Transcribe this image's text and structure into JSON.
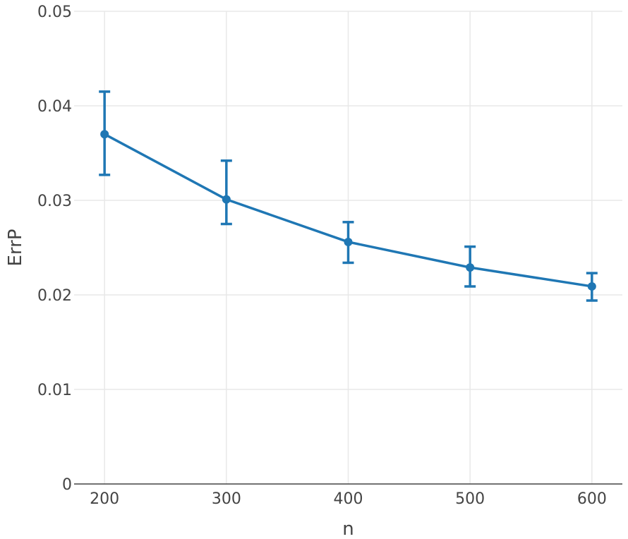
{
  "chart_data": {
    "type": "line",
    "xlabel": "n",
    "ylabel": "ErrP",
    "xlim": [
      175,
      625
    ],
    "ylim": [
      0,
      0.05
    ],
    "x_ticks": [
      200,
      300,
      400,
      500,
      600
    ],
    "x_tick_labels": [
      "200",
      "300",
      "400",
      "500",
      "600"
    ],
    "y_ticks": [
      0,
      0.01,
      0.02,
      0.03,
      0.04,
      0.05
    ],
    "y_tick_labels": [
      "0",
      "0.01",
      "0.02",
      "0.03",
      "0.04",
      "0.05"
    ],
    "grid": true,
    "series": [
      {
        "color": "#1f77b4",
        "x": [
          200,
          300,
          400,
          500,
          600
        ],
        "y": [
          0.037,
          0.0301,
          0.0256,
          0.0229,
          0.0209
        ],
        "err_high": [
          0.0415,
          0.0342,
          0.0277,
          0.0251,
          0.0223
        ],
        "err_low": [
          0.0327,
          0.0275,
          0.0234,
          0.0209,
          0.0194
        ]
      }
    ]
  }
}
